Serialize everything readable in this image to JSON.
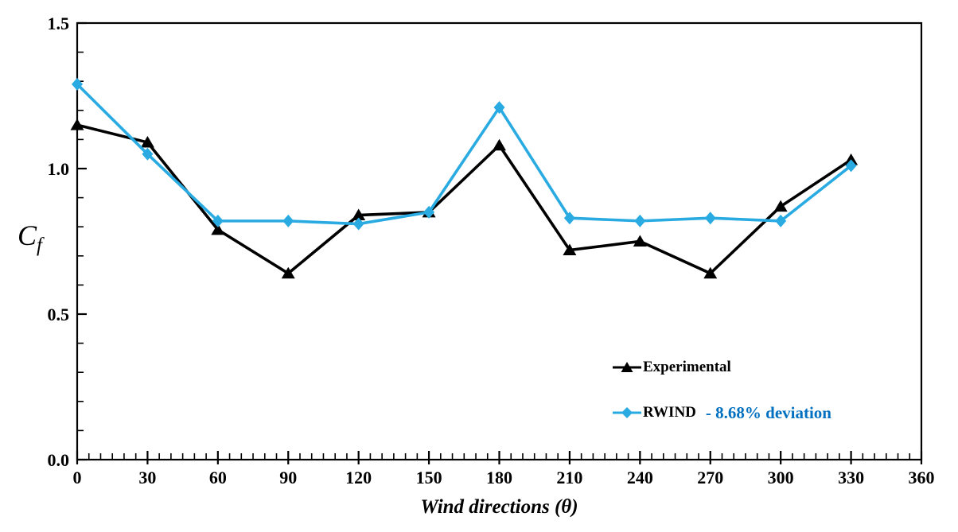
{
  "chart": {
    "y_axis_label": {
      "main": "C",
      "sub": "f"
    },
    "x_axis_label": "Wind directions (θ)"
  },
  "chart_data": {
    "type": "line",
    "x": [
      0,
      30,
      60,
      90,
      120,
      150,
      180,
      210,
      240,
      270,
      300,
      330
    ],
    "xlabel": "Wind directions (θ)",
    "ylabel": "Cf",
    "xlim": [
      0,
      360
    ],
    "ylim": [
      0,
      1.5
    ],
    "x_major_ticks": [
      0,
      30,
      60,
      90,
      120,
      150,
      180,
      210,
      240,
      270,
      300,
      330,
      360
    ],
    "x_tick_labels": [
      "0",
      "30",
      "60",
      "90",
      "120",
      "150",
      "180",
      "210",
      "240",
      "270",
      "300",
      "330",
      "360"
    ],
    "x_minor_step": 5,
    "y_major_ticks": [
      0,
      0.5,
      1.0,
      1.5
    ],
    "y_tick_labels": [
      "0.0",
      "0.5",
      "1.0",
      "1.5"
    ],
    "y_minor_step": 0.1,
    "grid": false,
    "legend_position": "inside lower-right",
    "axis_color": "#000000",
    "series": [
      {
        "name": "Experimental",
        "color": "#000000",
        "marker": "triangle",
        "values": [
          1.15,
          1.09,
          0.79,
          0.64,
          0.84,
          0.85,
          1.08,
          0.72,
          0.75,
          0.64,
          0.87,
          1.03
        ]
      },
      {
        "name": "RWIND",
        "color": "#29ABE2",
        "marker": "diamond",
        "values": [
          1.29,
          1.05,
          0.82,
          0.82,
          0.81,
          0.85,
          1.21,
          0.83,
          0.82,
          0.83,
          0.82,
          1.01
        ],
        "annotation": "- 8.68% deviation",
        "annotation_color": "#0070C0"
      }
    ]
  }
}
